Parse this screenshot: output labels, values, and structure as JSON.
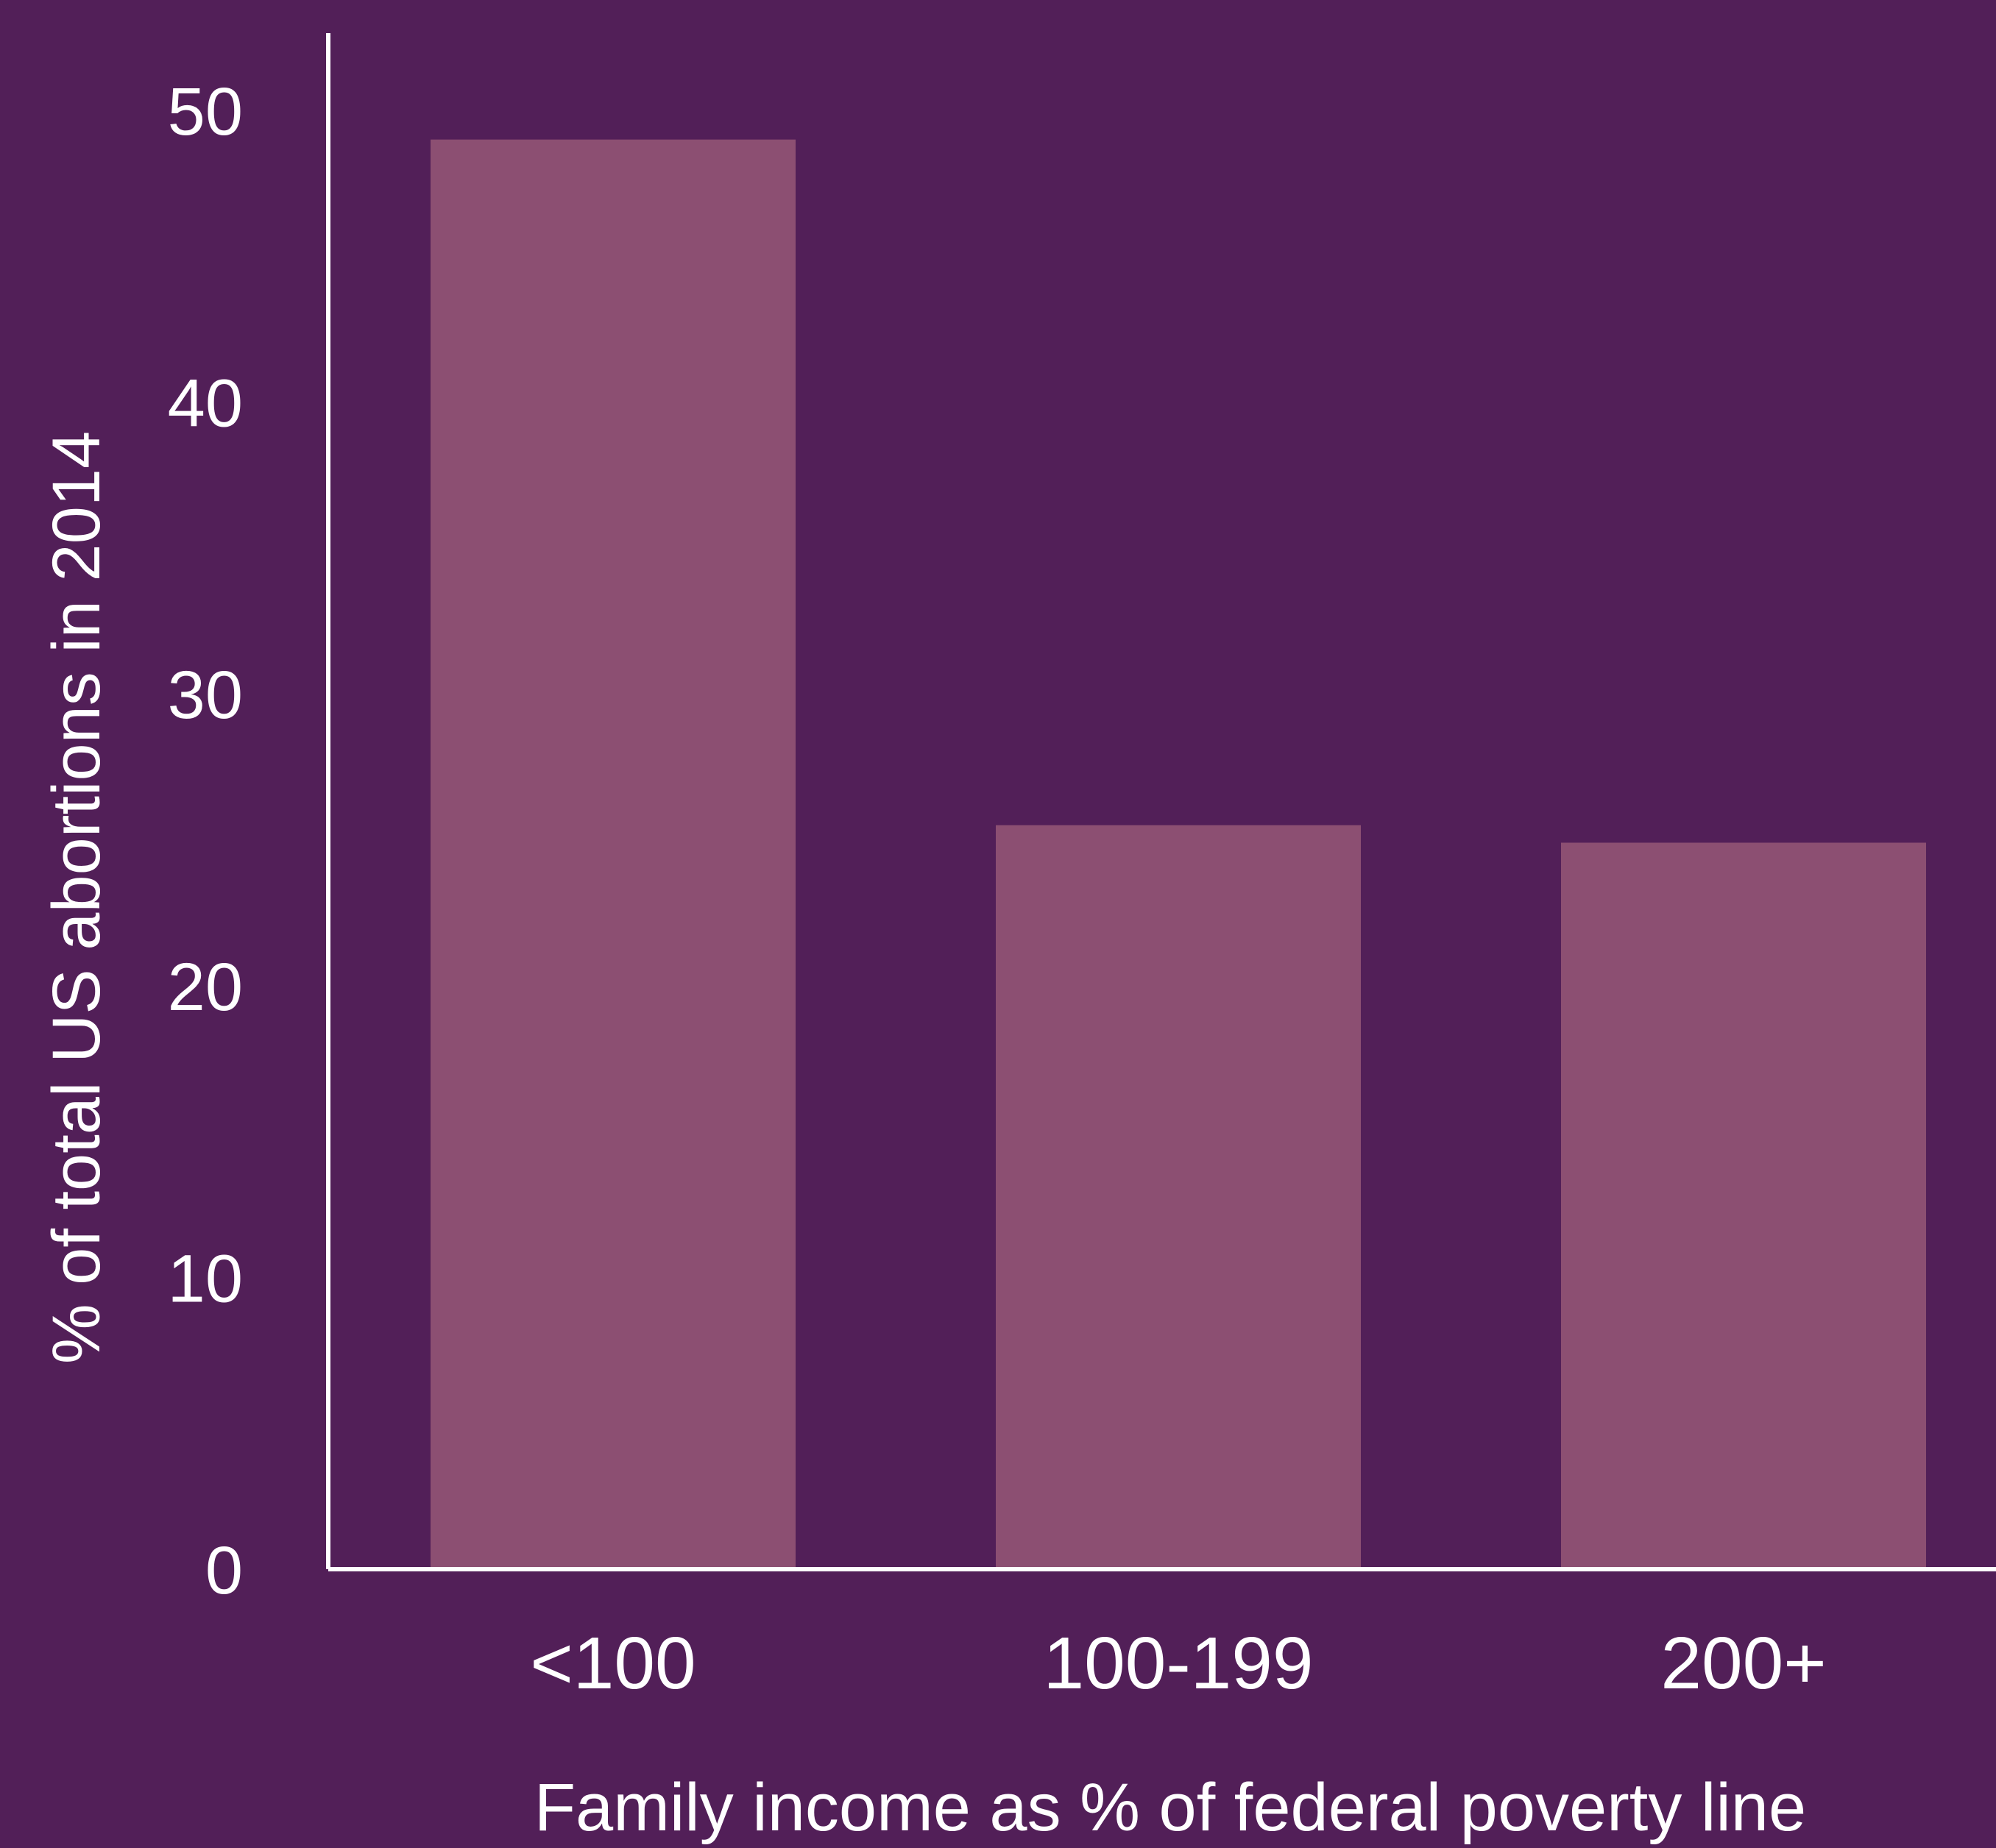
{
  "colors": {
    "background": "#521f58",
    "bar": "#8c4f72",
    "axis": "#ffffff",
    "text": "#ffffff"
  },
  "chart_data": {
    "type": "bar",
    "categories": [
      "<100",
      "100-199",
      "200+"
    ],
    "values": [
      49,
      25.5,
      24.9
    ],
    "ylabel": "% of total US abortions in 2014",
    "xlabel": "Family income as % of federal poverty line",
    "ylim": [
      0,
      50
    ],
    "yticks": [
      0,
      10,
      20,
      30,
      40,
      50
    ],
    "grid": false,
    "legend": "none"
  }
}
